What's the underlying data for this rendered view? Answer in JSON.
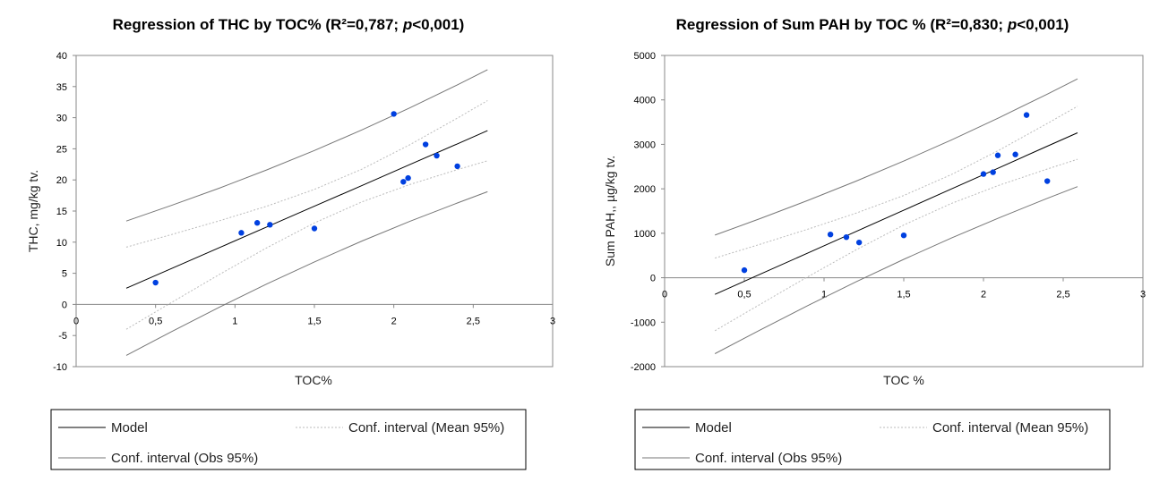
{
  "chart_data": [
    {
      "type": "scatter",
      "title_prefix": "Regression of THC by TOC% (R²=0,787; ",
      "title_italic": "p",
      "title_suffix": "<0,001)",
      "xlabel": "TOC%",
      "ylabel": "THC,  mg/kg tv.",
      "xlim": [
        0,
        3
      ],
      "ylim": [
        -10,
        40
      ],
      "xticks": [
        0,
        0.5,
        1,
        1.5,
        2,
        2.5,
        3
      ],
      "xtick_labels": [
        "0",
        "0,5",
        "1",
        "1,5",
        "2",
        "2,5",
        "3"
      ],
      "yticks": [
        -10,
        -5,
        0,
        5,
        10,
        15,
        20,
        25,
        30,
        35,
        40
      ],
      "ytick_labels": [
        "-10",
        "-5",
        "0",
        "5",
        "10",
        "15",
        "20",
        "25",
        "30",
        "35",
        "40"
      ],
      "grid": false,
      "legend_placement": "bottom",
      "points": {
        "x": [
          0.5,
          1.04,
          1.14,
          1.22,
          1.5,
          2.0,
          2.06,
          2.09,
          2.2,
          2.27,
          2.4
        ],
        "y": [
          3.5,
          11.5,
          13.1,
          12.8,
          12.2,
          30.6,
          19.7,
          20.3,
          25.7,
          23.9,
          22.2
        ],
        "color": "#0040e0"
      },
      "curve_x": [
        0.316,
        0.6,
        0.9,
        1.2,
        1.5,
        1.8,
        2.1,
        2.4,
        2.59
      ],
      "model": [
        2.6,
        5.76,
        9.1,
        12.44,
        15.78,
        19.11,
        22.45,
        25.79,
        27.91
      ],
      "mean_upper": [
        9.2,
        11.22,
        13.42,
        15.78,
        18.47,
        21.74,
        25.64,
        29.93,
        32.74
      ],
      "mean_lower": [
        -4.0,
        0.3,
        4.78,
        9.1,
        13.09,
        16.48,
        19.26,
        21.65,
        23.08
      ],
      "obs_upper": [
        13.39,
        15.9,
        18.67,
        21.61,
        24.73,
        28.04,
        31.57,
        35.28,
        37.72
      ],
      "obs_lower": [
        -8.19,
        -4.38,
        -0.47,
        3.27,
        6.83,
        10.18,
        13.33,
        16.3,
        18.1
      ],
      "legend": [
        "Model",
        "Conf. interval (Mean 95%)",
        "Conf. interval (Obs 95%)"
      ]
    },
    {
      "type": "scatter",
      "title_prefix": "Regression of Sum PAH by TOC % (R²=0,830; ",
      "title_italic": "p",
      "title_suffix": "<0,001)",
      "xlabel": "TOC  %",
      "ylabel": "Sum PAH,, µg/kg tv.",
      "xlim": [
        0,
        3
      ],
      "ylim": [
        -2000,
        5000
      ],
      "xticks": [
        0,
        0.5,
        1,
        1.5,
        2,
        2.5,
        3
      ],
      "xtick_labels": [
        "0",
        "0,5",
        "1",
        "1,5",
        "2",
        "2,5",
        "3"
      ],
      "yticks": [
        -2000,
        -1000,
        0,
        1000,
        2000,
        3000,
        4000,
        5000
      ],
      "ytick_labels": [
        "-2000",
        "-1000",
        "0",
        "1000",
        "2000",
        "3000",
        "4000",
        "5000"
      ],
      "grid": false,
      "legend_placement": "bottom",
      "points": {
        "x": [
          0.5,
          1.04,
          1.14,
          1.22,
          1.5,
          2.0,
          2.06,
          2.09,
          2.2,
          2.27,
          2.4
        ],
        "y": [
          170,
          973,
          913,
          793,
          953,
          2333,
          2373,
          2753,
          2773,
          3660,
          2173
        ],
        "color": "#0040e0"
      },
      "curve_x": [
        0.316,
        0.6,
        0.9,
        1.2,
        1.5,
        1.8,
        2.1,
        2.4,
        2.59
      ],
      "model": [
        -375,
        79,
        559,
        1039,
        1519,
        1998,
        2478,
        2958,
        3261
      ],
      "mean_upper": [
        441,
        753,
        1093,
        1452,
        1851,
        2323,
        2873,
        3470,
        3858
      ],
      "mean_lower": [
        -1191,
        -595,
        25,
        626,
        1187,
        1673,
        2083,
        2446,
        2664
      ],
      "obs_upper": [
        959,
        1331,
        1742,
        2172,
        2625,
        3102,
        3605,
        4130,
        4473
      ],
      "obs_lower": [
        -1709,
        -1173,
        -624,
        -94,
        413,
        894,
        1351,
        1786,
        2049
      ],
      "legend": [
        "Model",
        "Conf. interval (Mean 95%)",
        "Conf. interval (Obs 95%)"
      ]
    }
  ]
}
